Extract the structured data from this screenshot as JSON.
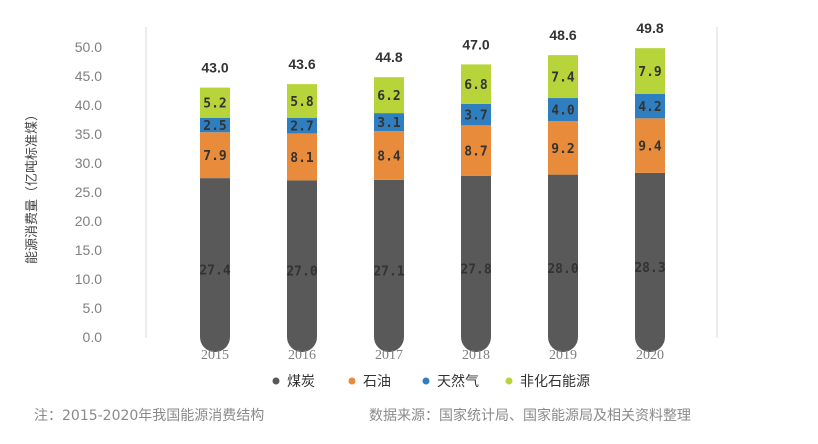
{
  "chart_data": {
    "type": "bar",
    "stacked": true,
    "title": "",
    "xlabel": "",
    "ylabel": "能源消费量（亿吨标准煤）",
    "ylim": [
      0,
      50
    ],
    "yticks": [
      "0.0",
      "5.0",
      "10.0",
      "15.0",
      "20.0",
      "25.0",
      "30.0",
      "35.0",
      "40.0",
      "45.0",
      "50.0"
    ],
    "categories": [
      "2015",
      "2016",
      "2017",
      "2018",
      "2019",
      "2020"
    ],
    "totals": [
      "43.0",
      "43.6",
      "44.8",
      "47.0",
      "48.6",
      "49.8"
    ],
    "series": [
      {
        "name": "煤炭",
        "color": "#595959",
        "values": [
          27.4,
          27.0,
          27.1,
          27.8,
          28.0,
          28.3
        ],
        "labels": [
          "27.4",
          "27.0",
          "27.1",
          "27.8",
          "28.0",
          "28.3"
        ]
      },
      {
        "name": "石油",
        "color": "#e88b3b",
        "values": [
          7.9,
          8.1,
          8.4,
          8.7,
          9.2,
          9.4
        ],
        "labels": [
          "7.9",
          "8.1",
          "8.4",
          "8.7",
          "9.2",
          "9.4"
        ]
      },
      {
        "name": "天然气",
        "color": "#2f7fc0",
        "values": [
          2.5,
          2.7,
          3.1,
          3.7,
          4.0,
          4.2
        ],
        "labels": [
          "2.5",
          "2.7",
          "3.1",
          "3.7",
          "4.0",
          "4.2"
        ]
      },
      {
        "name": "非化石能源",
        "color": "#b7d43a",
        "values": [
          5.2,
          5.8,
          6.2,
          6.8,
          7.4,
          7.9
        ],
        "labels": [
          "5.2",
          "5.8",
          "6.2",
          "6.8",
          "7.4",
          "7.9"
        ]
      }
    ],
    "legend_position": "bottom",
    "grid": false
  },
  "footer": {
    "note": "注：2015-2020年我国能源消费结构",
    "source": "数据来源：国家统计局、国家能源局及相关资料整理"
  }
}
